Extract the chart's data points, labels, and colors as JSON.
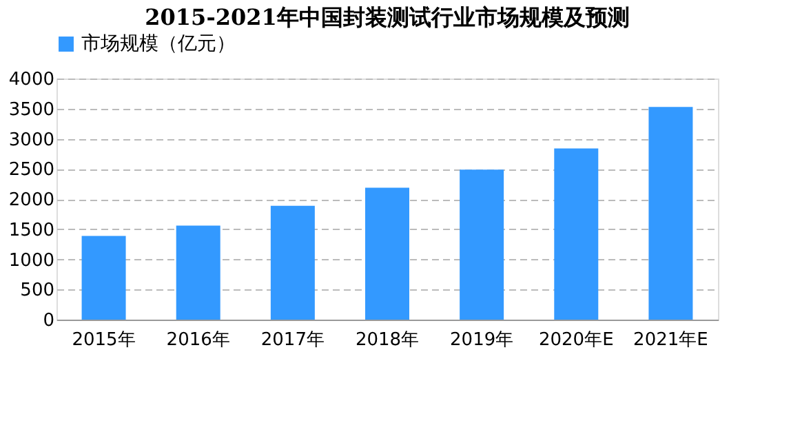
{
  "chart_data": {
    "type": "bar",
    "title": "2015-2021年中国封装测试行业市场规模及预测",
    "categories": [
      "2015年",
      "2016年",
      "2017年",
      "2018年",
      "2019年",
      "2020年E",
      "2021年E"
    ],
    "series": [
      {
        "name": "市场规模（亿元）",
        "color": "#3399ff",
        "values": [
          1390,
          1560,
          1890,
          2190,
          2490,
          2840,
          3530
        ]
      }
    ],
    "ylim": [
      0,
      4000
    ],
    "yticks": [
      0,
      500,
      1000,
      1500,
      2000,
      2500,
      3000,
      3500,
      4000
    ],
    "grid": "y",
    "legend": "top"
  }
}
